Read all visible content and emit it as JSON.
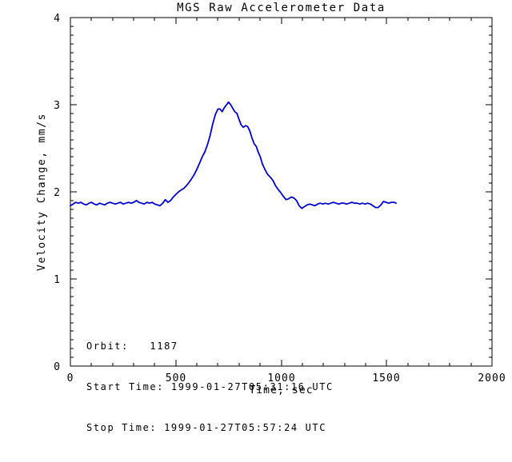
{
  "annotations": {
    "orbit": "Orbit:   1187",
    "start": "Start Time: 1999-01-27T05:31:16 UTC",
    "stop": "Stop Time: 1999-01-27T05:57:24 UTC"
  },
  "chart_data": {
    "type": "line",
    "title": "MGS Raw Accelerometer Data",
    "xlabel": "Time, sec",
    "ylabel": "Velocity Change, mm/s",
    "xlim": [
      0,
      2000
    ],
    "ylim": [
      0,
      4
    ],
    "xticks": [
      0,
      500,
      1000,
      1500,
      2000
    ],
    "yticks": [
      0,
      1,
      2,
      3,
      4
    ],
    "x_minor_step": 100,
    "y_minor_step": 0.1,
    "grid": false,
    "legend": "none",
    "line_color": "#0000CC",
    "axis_color": "#000000",
    "background_color": "#ffffff",
    "series": [
      {
        "name": "Velocity Change",
        "x": [
          0,
          13,
          25,
          38,
          50,
          63,
          75,
          88,
          100,
          113,
          125,
          138,
          150,
          163,
          175,
          188,
          200,
          213,
          225,
          238,
          250,
          263,
          275,
          288,
          300,
          313,
          325,
          338,
          350,
          363,
          375,
          388,
          400,
          413,
          425,
          438,
          450,
          463,
          475,
          488,
          500,
          513,
          525,
          538,
          550,
          563,
          575,
          588,
          600,
          613,
          625,
          638,
          650,
          663,
          675,
          688,
          700,
          710,
          720,
          731,
          741,
          750,
          760,
          770,
          780,
          790,
          800,
          810,
          820,
          831,
          841,
          851,
          861,
          872,
          882,
          892,
          901,
          911,
          924,
          936,
          948,
          961,
          973,
          985,
          998,
          1010,
          1023,
          1035,
          1048,
          1060,
          1073,
          1085,
          1098,
          1110,
          1123,
          1135,
          1148,
          1160,
          1173,
          1185,
          1198,
          1210,
          1223,
          1235,
          1248,
          1260,
          1273,
          1285,
          1298,
          1310,
          1323,
          1335,
          1348,
          1360,
          1373,
          1385,
          1398,
          1410,
          1423,
          1435,
          1448,
          1460,
          1473,
          1485,
          1498,
          1510,
          1523,
          1535,
          1545
        ],
        "y": [
          1.84,
          1.86,
          1.88,
          1.87,
          1.88,
          1.86,
          1.85,
          1.87,
          1.88,
          1.86,
          1.85,
          1.87,
          1.86,
          1.85,
          1.87,
          1.88,
          1.87,
          1.86,
          1.87,
          1.88,
          1.86,
          1.87,
          1.88,
          1.87,
          1.88,
          1.9,
          1.88,
          1.87,
          1.86,
          1.88,
          1.87,
          1.88,
          1.86,
          1.85,
          1.84,
          1.87,
          1.91,
          1.88,
          1.9,
          1.94,
          1.97,
          2.0,
          2.02,
          2.04,
          2.07,
          2.11,
          2.15,
          2.2,
          2.26,
          2.33,
          2.4,
          2.46,
          2.54,
          2.65,
          2.78,
          2.89,
          2.95,
          2.95,
          2.92,
          2.97,
          3.0,
          3.03,
          3.0,
          2.96,
          2.92,
          2.9,
          2.83,
          2.77,
          2.74,
          2.76,
          2.75,
          2.7,
          2.62,
          2.55,
          2.52,
          2.45,
          2.4,
          2.32,
          2.25,
          2.2,
          2.17,
          2.13,
          2.07,
          2.03,
          1.99,
          1.95,
          1.91,
          1.92,
          1.94,
          1.93,
          1.9,
          1.84,
          1.81,
          1.83,
          1.85,
          1.86,
          1.85,
          1.84,
          1.86,
          1.87,
          1.86,
          1.87,
          1.86,
          1.87,
          1.88,
          1.87,
          1.86,
          1.87,
          1.87,
          1.86,
          1.87,
          1.88,
          1.87,
          1.87,
          1.86,
          1.87,
          1.86,
          1.87,
          1.86,
          1.84,
          1.82,
          1.82,
          1.85,
          1.89,
          1.88,
          1.87,
          1.88,
          1.88,
          1.87
        ]
      }
    ]
  }
}
